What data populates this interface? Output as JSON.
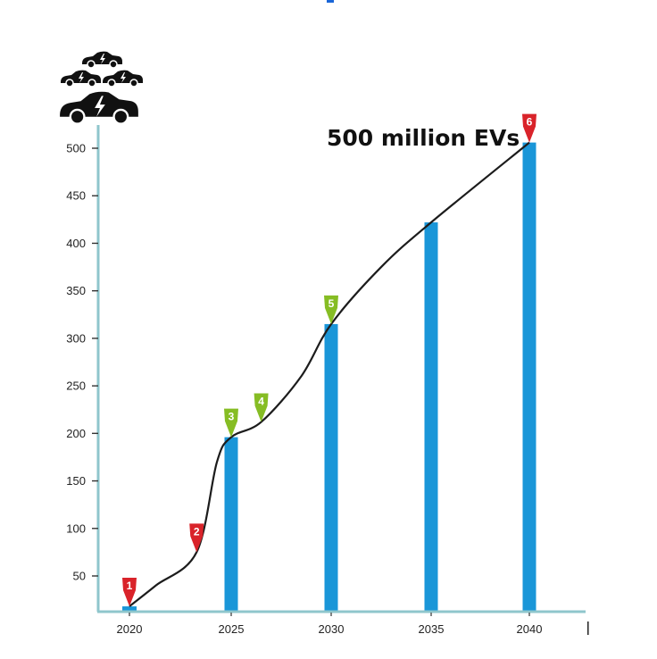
{
  "chart_data": {
    "type": "bar",
    "title": "",
    "xlabel": "",
    "ylabel": "",
    "ylim": [
      15,
      520
    ],
    "y_ticks": [
      50,
      100,
      150,
      200,
      250,
      300,
      350,
      400,
      450,
      500
    ],
    "categories": [
      "2020",
      "2025",
      "2030",
      "2035",
      "2040"
    ],
    "values": [
      18,
      196,
      315,
      422,
      506
    ],
    "bar_color": "#1a96d8",
    "axis_color": "#8fc6cc",
    "trend_line": {
      "color": "#1c1c1c",
      "points": [
        {
          "x": 2020,
          "y": 18
        },
        {
          "x": 2021.3,
          "y": 40
        },
        {
          "x": 2023.3,
          "y": 75
        },
        {
          "x": 2024.3,
          "y": 170
        },
        {
          "x": 2025,
          "y": 196
        },
        {
          "x": 2026.5,
          "y": 212
        },
        {
          "x": 2028.5,
          "y": 260
        },
        {
          "x": 2030,
          "y": 315
        },
        {
          "x": 2032.5,
          "y": 375
        },
        {
          "x": 2035,
          "y": 422
        },
        {
          "x": 2040,
          "y": 506
        }
      ]
    },
    "markers": [
      {
        "label": "1",
        "x": 2020,
        "y": 18,
        "color": "#d9232a"
      },
      {
        "label": "2",
        "x": 2023.3,
        "y": 75,
        "color": "#d9232a"
      },
      {
        "label": "3",
        "x": 2025,
        "y": 196,
        "color": "#86bd24"
      },
      {
        "label": "4",
        "x": 2026.5,
        "y": 212,
        "color": "#86bd24"
      },
      {
        "label": "5",
        "x": 2030,
        "y": 315,
        "color": "#86bd24"
      },
      {
        "label": "6",
        "x": 2040,
        "y": 506,
        "color": "#d9232a"
      }
    ],
    "annotations": [
      {
        "text": "500 million EVs"
      }
    ]
  },
  "icon": {
    "name": "electric-cars-icon",
    "color": "#111111"
  }
}
